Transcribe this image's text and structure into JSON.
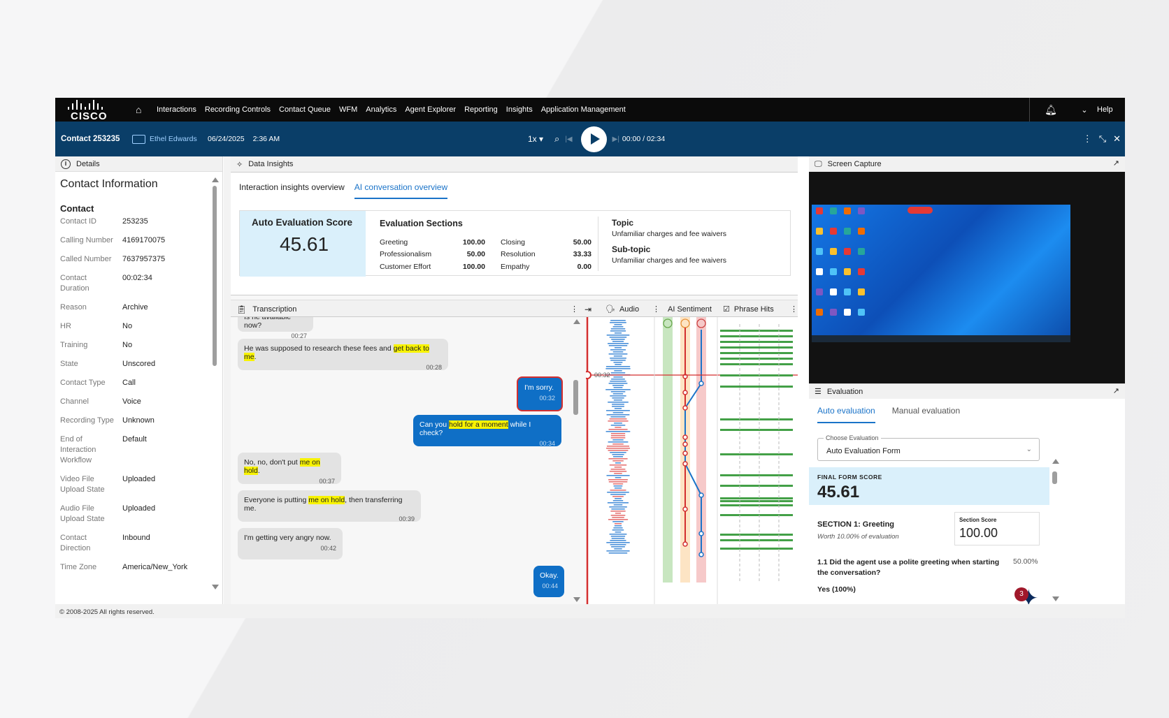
{
  "nav": {
    "logo_text": "CISCO",
    "items": [
      "Interactions",
      "Recording Controls",
      "Contact Queue",
      "WFM",
      "Analytics",
      "Agent Explorer",
      "Reporting",
      "Insights",
      "Application Management"
    ],
    "help": "Help"
  },
  "subbar": {
    "contact_title": "Contact 253235",
    "agent": "Ethel Edwards",
    "date": "06/24/2025",
    "time": "2:36 AM",
    "speed": "1x",
    "playback_time": "00:00 / 02:34"
  },
  "details": {
    "header": "Details",
    "title": "Contact Information",
    "section": "Contact",
    "rows": [
      {
        "k": "Contact ID",
        "v": "253235"
      },
      {
        "k": "Calling Number",
        "v": "4169170075"
      },
      {
        "k": "Called Number",
        "v": "7637957375"
      },
      {
        "k": "Contact Duration",
        "v": "00:02:34"
      },
      {
        "k": "Reason",
        "v": "Archive"
      },
      {
        "k": "HR",
        "v": "No"
      },
      {
        "k": "Training",
        "v": "No"
      },
      {
        "k": "State",
        "v": "Unscored"
      },
      {
        "k": "Contact Type",
        "v": "Call"
      },
      {
        "k": "Channel",
        "v": "Voice"
      },
      {
        "k": "Recording Type",
        "v": "Unknown"
      },
      {
        "k": "End of Interaction Workflow",
        "v": "Default"
      },
      {
        "k": "Video File Upload State",
        "v": "Uploaded"
      },
      {
        "k": "Audio File Upload State",
        "v": "Uploaded"
      },
      {
        "k": "Contact Direction",
        "v": "Inbound"
      },
      {
        "k": "Time Zone",
        "v": "America/New_York"
      }
    ]
  },
  "insights": {
    "header": "Data Insights",
    "tabs": [
      "Interaction insights overview",
      "AI conversation overview"
    ],
    "auto_eval_label": "Auto Evaluation Score",
    "auto_eval_score": "45.61",
    "sections_title": "Evaluation Sections",
    "sections": [
      {
        "n1": "Greeting",
        "v1": "100.00",
        "n2": "Closing",
        "v2": "50.00"
      },
      {
        "n1": "Professionalism",
        "v1": "50.00",
        "n2": "Resolution",
        "v2": "33.33"
      },
      {
        "n1": "Customer Effort",
        "v1": "100.00",
        "n2": "Empathy",
        "v2": "0.00"
      }
    ],
    "topic_label": "Topic",
    "topic": "Unfamiliar charges and fee waivers",
    "subtopic_label": "Sub-topic",
    "subtopic": "Unfamiliar charges and fee waivers"
  },
  "transcription": {
    "header": "Transcription",
    "audio": "Audio",
    "sentiment": "AI Sentiment",
    "phrase_hits": "Phrase Hits",
    "cursor_time": "00:32",
    "messages": [
      {
        "side": "l",
        "pre": "Is he available now?",
        "hl": "",
        "post": "",
        "time": "00:27"
      },
      {
        "side": "l",
        "pre": "He was supposed to research these fees and ",
        "hl": "get back to me",
        "post": ".",
        "time": "00:28"
      },
      {
        "side": "r",
        "pre": "I'm sorry.",
        "hl": "",
        "post": "",
        "time": "00:32"
      },
      {
        "side": "r",
        "pre": "Can you ",
        "hl": "hold for a moment",
        "post": " while I check?",
        "time": "00:34"
      },
      {
        "side": "l",
        "pre": "No, no, don't put ",
        "hl": "me on hold",
        "post": ".",
        "time": "00:37"
      },
      {
        "side": "l",
        "pre": "Everyone is putting ",
        "hl": "me on hold",
        "post": ", then transferring me.",
        "time": "00:39"
      },
      {
        "side": "l",
        "pre": "I'm getting very angry now.",
        "hl": "",
        "post": "",
        "time": "00:42"
      },
      {
        "side": "r",
        "pre": "Okay.",
        "hl": "",
        "post": "",
        "time": "00:44"
      }
    ]
  },
  "screen_capture": {
    "header": "Screen Capture"
  },
  "evaluation": {
    "header": "Evaluation",
    "tabs": [
      "Auto evaluation",
      "Manual evaluation"
    ],
    "choose_label": "Choose Evaluation",
    "choose_value": "Auto Evaluation Form",
    "final_label": "FINAL FORM SCORE",
    "final_score": "45.61",
    "section_title": "SECTION 1: Greeting",
    "section_worth": "Worth 10.00% of evaluation",
    "section_score_label": "Section Score",
    "section_score": "100.00",
    "question": "1.1 Did the agent use a polite greeting when starting the conversation?",
    "question_pct": "50.00%",
    "answer": "Yes (100%)",
    "badge_count": "3"
  },
  "footer": "© 2008-2025 All rights reserved.",
  "colors": {
    "nav_bg": "#0b0b0b",
    "subbar_bg": "#0a3e68",
    "accent": "#1a73c8",
    "score_bg": "#daf0fb",
    "highlight": "#f8f300"
  }
}
